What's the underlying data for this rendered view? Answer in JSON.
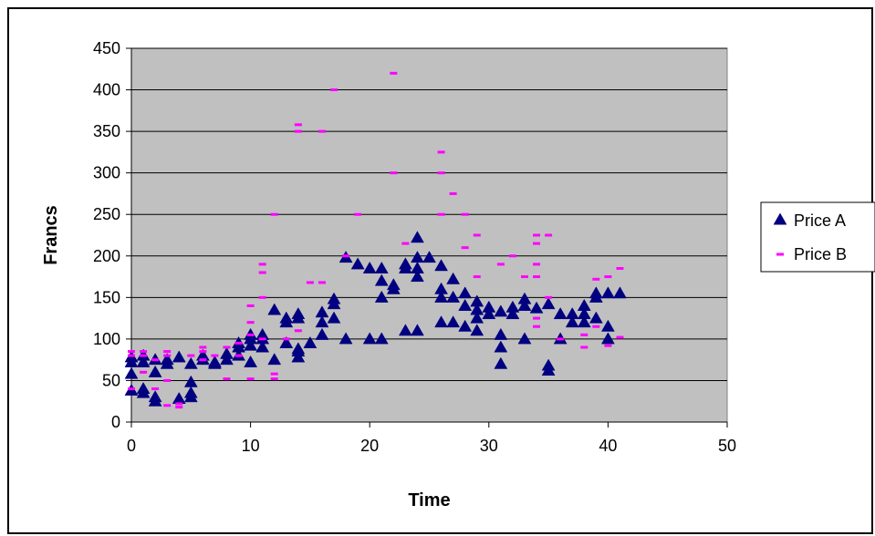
{
  "chart_data": {
    "type": "scatter",
    "title": "",
    "xlabel": "Time",
    "ylabel": "Francs",
    "xlim": [
      0,
      50
    ],
    "ylim": [
      0,
      450
    ],
    "xticks": [
      "0",
      "10",
      "20",
      "30",
      "40",
      "50"
    ],
    "yticks": [
      "0",
      "50",
      "100",
      "150",
      "200",
      "250",
      "300",
      "350",
      "400",
      "450"
    ],
    "grid": "horizontal major gridlines",
    "plot_background": "#c0c0c0",
    "legend_position": "right",
    "series": [
      {
        "name": "Price A",
        "marker": "triangle",
        "color": "#000080",
        "points": [
          [
            0,
            38
          ],
          [
            0,
            58
          ],
          [
            0,
            72
          ],
          [
            0,
            78
          ],
          [
            1,
            40
          ],
          [
            1,
            35
          ],
          [
            1,
            72
          ],
          [
            1,
            80
          ],
          [
            2,
            25
          ],
          [
            2,
            30
          ],
          [
            2,
            60
          ],
          [
            2,
            75
          ],
          [
            3,
            70
          ],
          [
            3,
            75
          ],
          [
            4,
            28
          ],
          [
            4,
            78
          ],
          [
            5,
            30
          ],
          [
            5,
            35
          ],
          [
            5,
            48
          ],
          [
            5,
            70
          ],
          [
            6,
            75
          ],
          [
            6,
            80
          ],
          [
            7,
            70
          ],
          [
            7,
            72
          ],
          [
            8,
            75
          ],
          [
            8,
            82
          ],
          [
            9,
            80
          ],
          [
            9,
            90
          ],
          [
            9,
            95
          ],
          [
            10,
            72
          ],
          [
            10,
            92
          ],
          [
            10,
            100
          ],
          [
            10,
            105
          ],
          [
            11,
            90
          ],
          [
            11,
            100
          ],
          [
            11,
            105
          ],
          [
            12,
            75
          ],
          [
            12,
            135
          ],
          [
            13,
            95
          ],
          [
            13,
            120
          ],
          [
            13,
            125
          ],
          [
            14,
            78
          ],
          [
            14,
            85
          ],
          [
            14,
            88
          ],
          [
            14,
            125
          ],
          [
            14,
            130
          ],
          [
            15,
            95
          ],
          [
            16,
            105
          ],
          [
            16,
            120
          ],
          [
            16,
            132
          ],
          [
            17,
            125
          ],
          [
            17,
            142
          ],
          [
            17,
            148
          ],
          [
            18,
            100
          ],
          [
            18,
            198
          ],
          [
            19,
            190
          ],
          [
            20,
            100
          ],
          [
            20,
            185
          ],
          [
            21,
            100
          ],
          [
            21,
            150
          ],
          [
            21,
            170
          ],
          [
            21,
            185
          ],
          [
            22,
            160
          ],
          [
            22,
            165
          ],
          [
            23,
            110
          ],
          [
            23,
            185
          ],
          [
            23,
            190
          ],
          [
            24,
            110
          ],
          [
            24,
            175
          ],
          [
            24,
            185
          ],
          [
            24,
            198
          ],
          [
            24,
            222
          ],
          [
            25,
            198
          ],
          [
            26,
            120
          ],
          [
            26,
            150
          ],
          [
            26,
            160
          ],
          [
            26,
            188
          ],
          [
            27,
            120
          ],
          [
            27,
            150
          ],
          [
            27,
            172
          ],
          [
            28,
            115
          ],
          [
            28,
            140
          ],
          [
            28,
            155
          ],
          [
            29,
            110
          ],
          [
            29,
            125
          ],
          [
            29,
            135
          ],
          [
            29,
            145
          ],
          [
            30,
            130
          ],
          [
            30,
            138
          ],
          [
            31,
            70
          ],
          [
            31,
            90
          ],
          [
            31,
            105
          ],
          [
            31,
            133
          ],
          [
            32,
            130
          ],
          [
            32,
            138
          ],
          [
            33,
            100
          ],
          [
            33,
            140
          ],
          [
            33,
            148
          ],
          [
            34,
            137
          ],
          [
            35,
            62
          ],
          [
            35,
            68
          ],
          [
            35,
            142
          ],
          [
            36,
            100
          ],
          [
            36,
            130
          ],
          [
            37,
            120
          ],
          [
            37,
            130
          ],
          [
            38,
            120
          ],
          [
            38,
            130
          ],
          [
            38,
            140
          ],
          [
            39,
            125
          ],
          [
            39,
            150
          ],
          [
            39,
            155
          ],
          [
            40,
            100
          ],
          [
            40,
            115
          ],
          [
            40,
            155
          ],
          [
            41,
            155
          ]
        ]
      },
      {
        "name": "Price B",
        "marker": "dash",
        "color": "#ff00ff",
        "points": [
          [
            0,
            40
          ],
          [
            0,
            80
          ],
          [
            0,
            85
          ],
          [
            1,
            60
          ],
          [
            1,
            80
          ],
          [
            1,
            85
          ],
          [
            2,
            40
          ],
          [
            2,
            75
          ],
          [
            3,
            20
          ],
          [
            3,
            50
          ],
          [
            3,
            80
          ],
          [
            3,
            85
          ],
          [
            4,
            18
          ],
          [
            4,
            22
          ],
          [
            5,
            80
          ],
          [
            6,
            75
          ],
          [
            6,
            85
          ],
          [
            6,
            90
          ],
          [
            7,
            80
          ],
          [
            8,
            52
          ],
          [
            8,
            90
          ],
          [
            9,
            80
          ],
          [
            9,
            95
          ],
          [
            10,
            52
          ],
          [
            10,
            105
          ],
          [
            10,
            120
          ],
          [
            10,
            140
          ],
          [
            11,
            100
          ],
          [
            11,
            150
          ],
          [
            11,
            180
          ],
          [
            11,
            190
          ],
          [
            12,
            52
          ],
          [
            12,
            58
          ],
          [
            12,
            250
          ],
          [
            13,
            100
          ],
          [
            14,
            110
          ],
          [
            14,
            350
          ],
          [
            14,
            358
          ],
          [
            15,
            168
          ],
          [
            16,
            168
          ],
          [
            16,
            350
          ],
          [
            17,
            400
          ],
          [
            18,
            200
          ],
          [
            19,
            250
          ],
          [
            22,
            300
          ],
          [
            22,
            420
          ],
          [
            23,
            215
          ],
          [
            26,
            250
          ],
          [
            26,
            300
          ],
          [
            26,
            325
          ],
          [
            27,
            275
          ],
          [
            28,
            210
          ],
          [
            28,
            250
          ],
          [
            29,
            175
          ],
          [
            29,
            225
          ],
          [
            31,
            190
          ],
          [
            32,
            200
          ],
          [
            33,
            175
          ],
          [
            34,
            115
          ],
          [
            34,
            125
          ],
          [
            34,
            175
          ],
          [
            34,
            190
          ],
          [
            34,
            215
          ],
          [
            34,
            225
          ],
          [
            35,
            150
          ],
          [
            35,
            225
          ],
          [
            36,
            100
          ],
          [
            38,
            90
          ],
          [
            38,
            105
          ],
          [
            39,
            115
          ],
          [
            39,
            172
          ],
          [
            40,
            92
          ],
          [
            40,
            175
          ],
          [
            41,
            102
          ],
          [
            41,
            185
          ]
        ]
      }
    ]
  }
}
